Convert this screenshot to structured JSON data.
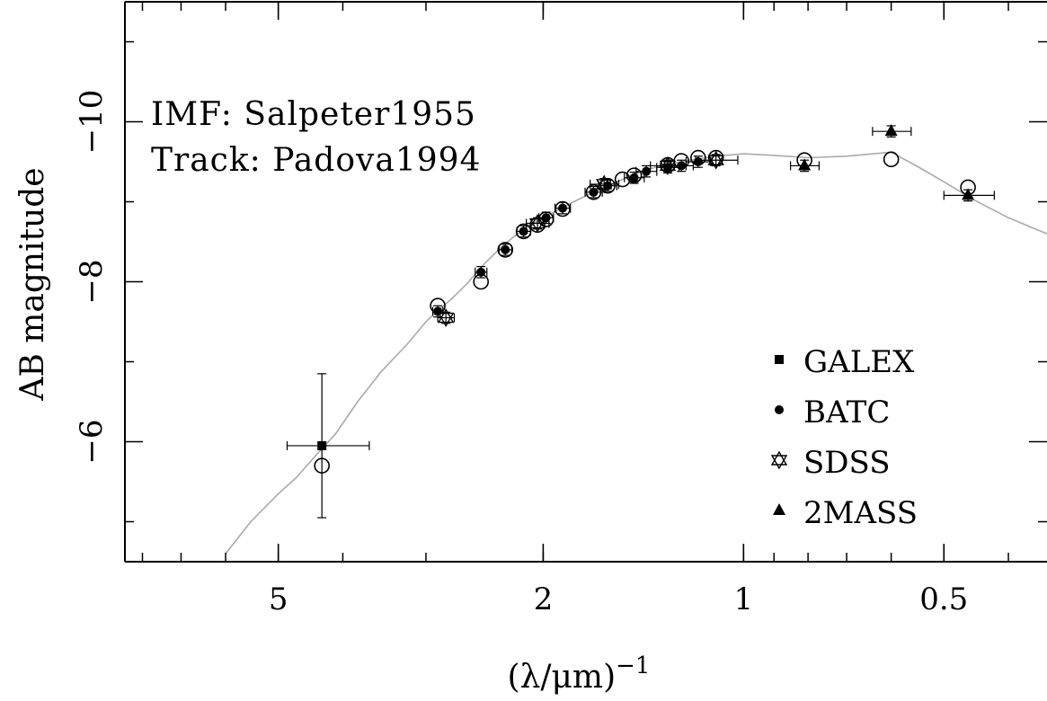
{
  "chart_data": {
    "type": "scatter",
    "x_scale": "log",
    "y_inverted": true,
    "xlabel": "(λ/μm)",
    "xlabel_exponent": "−1",
    "ylabel": "AB magnitude",
    "xlim": [
      8.5,
      0.35
    ],
    "ylim": [
      -4.5,
      -11.5
    ],
    "x_ticks": [
      {
        "value": 5,
        "label": "5"
      },
      {
        "value": 2,
        "label": "2"
      },
      {
        "value": 1,
        "label": "1"
      },
      {
        "value": 0.5,
        "label": "0.5"
      }
    ],
    "y_ticks": [
      {
        "value": -6,
        "label": "−6"
      },
      {
        "value": -8,
        "label": "−8"
      },
      {
        "value": -10,
        "label": "−10"
      }
    ],
    "annotations": [
      "IMF: Salpeter1955",
      "Track: Padova1994"
    ],
    "legend": {
      "position": "bottom-right"
    },
    "colors": {
      "model": "#aaaaaa",
      "points": "#000000"
    },
    "series": [
      {
        "name": "GALEX",
        "marker": "filled-square",
        "points": [
          {
            "x": 4.3,
            "y": -5.95,
            "xerr": [
              0.55,
              0.65
            ],
            "yerr": 0.9
          }
        ]
      },
      {
        "name": "BATC",
        "marker": "filled-circle",
        "points": [
          {
            "x": 2.88,
            "y": -7.63
          },
          {
            "x": 2.48,
            "y": -8.12
          },
          {
            "x": 2.28,
            "y": -8.4
          },
          {
            "x": 2.14,
            "y": -8.63
          },
          {
            "x": 1.98,
            "y": -8.8
          },
          {
            "x": 1.87,
            "y": -8.92
          },
          {
            "x": 1.68,
            "y": -9.12
          },
          {
            "x": 1.6,
            "y": -9.2
          },
          {
            "x": 1.46,
            "y": -9.3
          },
          {
            "x": 1.4,
            "y": -9.38
          },
          {
            "x": 1.3,
            "y": -9.43
          },
          {
            "x": 1.24,
            "y": -9.45
          },
          {
            "x": 1.17,
            "y": -9.5
          }
        ]
      },
      {
        "name": "SDSS",
        "marker": "open-star",
        "points": [
          {
            "x": 2.8,
            "y": -7.55
          },
          {
            "x": 2.04,
            "y": -8.73
          },
          {
            "x": 1.62,
            "y": -9.22
          },
          {
            "x": 1.3,
            "y": -9.45
          },
          {
            "x": 1.1,
            "y": -9.52
          }
        ]
      },
      {
        "name": "2MASS",
        "marker": "filled-triangle",
        "points": [
          {
            "x": 0.81,
            "y": -9.45
          },
          {
            "x": 0.6,
            "y": -9.88
          },
          {
            "x": 0.46,
            "y": -9.08
          }
        ]
      },
      {
        "name": "",
        "marker": "open-circle",
        "points": [
          {
            "x": 4.3,
            "y": -5.7
          },
          {
            "x": 2.88,
            "y": -7.7
          },
          {
            "x": 2.48,
            "y": -8.0
          },
          {
            "x": 2.28,
            "y": -8.4
          },
          {
            "x": 2.14,
            "y": -8.63
          },
          {
            "x": 2.04,
            "y": -8.71
          },
          {
            "x": 1.98,
            "y": -8.78
          },
          {
            "x": 1.87,
            "y": -8.91
          },
          {
            "x": 1.68,
            "y": -9.12
          },
          {
            "x": 1.6,
            "y": -9.2
          },
          {
            "x": 1.52,
            "y": -9.28
          },
          {
            "x": 1.46,
            "y": -9.33
          },
          {
            "x": 1.3,
            "y": -9.46
          },
          {
            "x": 1.24,
            "y": -9.51
          },
          {
            "x": 1.17,
            "y": -9.55
          },
          {
            "x": 1.1,
            "y": -9.55
          },
          {
            "x": 0.81,
            "y": -9.52
          },
          {
            "x": 0.6,
            "y": -9.53
          },
          {
            "x": 0.46,
            "y": -9.18
          }
        ]
      }
    ],
    "model_spectrum": {
      "x": [
        6.0,
        5.5,
        5.0,
        4.7,
        4.4,
        4.1,
        3.8,
        3.5,
        3.2,
        3.0,
        2.9,
        2.75,
        2.6,
        2.5,
        2.4,
        2.3,
        2.2,
        2.1,
        2.0,
        1.9,
        1.8,
        1.7,
        1.6,
        1.5,
        1.4,
        1.3,
        1.2,
        1.1,
        1.0,
        0.9,
        0.8,
        0.7,
        0.6,
        0.55,
        0.5,
        0.45,
        0.4,
        0.35
      ],
      "y": [
        -4.6,
        -5.0,
        -5.35,
        -5.55,
        -5.82,
        -6.1,
        -6.5,
        -6.88,
        -7.22,
        -7.5,
        -7.62,
        -7.78,
        -7.98,
        -8.15,
        -8.3,
        -8.45,
        -8.58,
        -8.7,
        -8.8,
        -8.9,
        -9.0,
        -9.1,
        -9.2,
        -9.3,
        -9.4,
        -9.47,
        -9.52,
        -9.57,
        -9.6,
        -9.58,
        -9.55,
        -9.57,
        -9.62,
        -9.45,
        -9.25,
        -9.02,
        -8.8,
        -8.6
      ]
    }
  }
}
